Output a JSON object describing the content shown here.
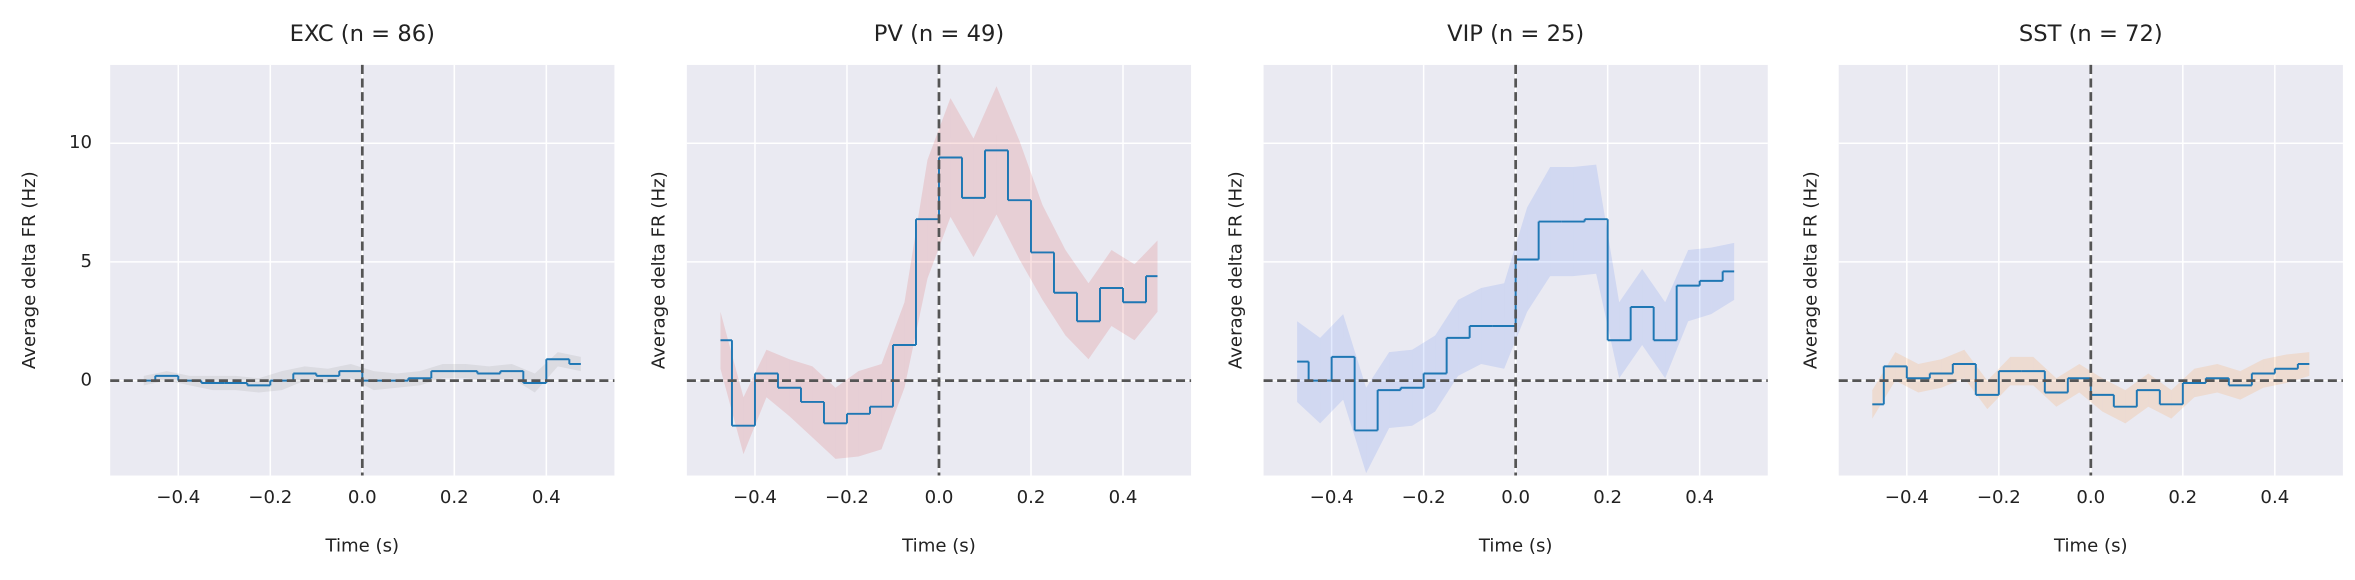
{
  "chart_data": [
    {
      "type": "line",
      "step": true,
      "title": "EXC (n = 86)",
      "xlabel": "Time (s)",
      "ylabel": "Average delta FR (Hz)",
      "x": [
        -0.475,
        -0.425,
        -0.375,
        -0.325,
        -0.275,
        -0.225,
        -0.175,
        -0.125,
        -0.075,
        -0.025,
        0.025,
        0.075,
        0.125,
        0.175,
        0.225,
        0.275,
        0.325,
        0.375,
        0.425,
        0.475
      ],
      "series": [
        {
          "color": "#1f77b4",
          "band_color": "#808080",
          "values": [
            0,
            0.2,
            0,
            -0.1,
            -0.1,
            -0.2,
            0,
            0.3,
            0.2,
            0.4,
            0,
            0,
            0.1,
            0.4,
            0.4,
            0.3,
            0.4,
            -0.1,
            0.9,
            0.7
          ],
          "errors": [
            0.2,
            0.2,
            0.2,
            0.3,
            0.3,
            0.3,
            0.4,
            0.3,
            0.3,
            0.3,
            0.4,
            0.3,
            0.3,
            0.3,
            0.3,
            0.3,
            0.3,
            0.4,
            0.3,
            0.3
          ]
        }
      ],
      "xlim": [
        -0.548,
        0.548
      ],
      "ylim": [
        -4.0,
        13.3
      ],
      "xticks": [
        {
          "value": -0.4,
          "label": "−0.4"
        },
        {
          "value": -0.2,
          "label": "−0.2"
        },
        {
          "value": 0,
          "label": "0.0"
        },
        {
          "value": 0.2,
          "label": "0.2"
        },
        {
          "value": 0.4,
          "label": "0.4"
        }
      ],
      "yticks": [
        0,
        5,
        10
      ],
      "show_ytick_labels": true,
      "grid": true,
      "axvline": 0,
      "axhline": 0
    },
    {
      "type": "line",
      "step": true,
      "title": "PV (n = 49)",
      "xlabel": "Time (s)",
      "ylabel": "Average delta FR (Hz)",
      "x": [
        -0.475,
        -0.425,
        -0.375,
        -0.325,
        -0.275,
        -0.225,
        -0.175,
        -0.125,
        -0.075,
        -0.025,
        0.025,
        0.075,
        0.125,
        0.175,
        0.225,
        0.275,
        0.325,
        0.375,
        0.425,
        0.475
      ],
      "series": [
        {
          "color": "#1f77b4",
          "band_color": "#d62728",
          "values": [
            1.7,
            -1.9,
            0.3,
            -0.3,
            -0.9,
            -1.8,
            -1.4,
            -1.1,
            1.5,
            6.8,
            9.4,
            7.7,
            9.7,
            7.6,
            5.4,
            3.7,
            2.5,
            3.9,
            3.3,
            4.4
          ],
          "errors": [
            1.2,
            1.2,
            1.0,
            1.2,
            1.5,
            1.5,
            1.8,
            1.8,
            1.8,
            2.5,
            2.5,
            2.5,
            2.7,
            2.5,
            2.0,
            1.8,
            1.6,
            1.6,
            1.6,
            1.5
          ]
        }
      ],
      "xlim": [
        -0.548,
        0.548
      ],
      "ylim": [
        -4.0,
        13.3
      ],
      "xticks": [
        {
          "value": -0.4,
          "label": "−0.4"
        },
        {
          "value": -0.2,
          "label": "−0.2"
        },
        {
          "value": 0,
          "label": "0.0"
        },
        {
          "value": 0.2,
          "label": "0.2"
        },
        {
          "value": 0.4,
          "label": "0.4"
        }
      ],
      "yticks": [
        0,
        5,
        10
      ],
      "show_ytick_labels": false,
      "grid": true,
      "axvline": 0,
      "axhline": 0
    },
    {
      "type": "line",
      "step": true,
      "title": "VIP (n = 25)",
      "xlabel": "Time (s)",
      "ylabel": "Average delta FR (Hz)",
      "x": [
        -0.475,
        -0.425,
        -0.375,
        -0.325,
        -0.275,
        -0.225,
        -0.175,
        -0.125,
        -0.075,
        -0.025,
        0.025,
        0.075,
        0.125,
        0.175,
        0.225,
        0.275,
        0.325,
        0.375,
        0.425,
        0.475
      ],
      "series": [
        {
          "color": "#1f77b4",
          "band_color": "#3a6cf0",
          "values": [
            0.8,
            0,
            1.0,
            -2.1,
            -0.4,
            -0.3,
            0.3,
            1.8,
            2.3,
            2.3,
            5.1,
            6.7,
            6.7,
            6.8,
            1.7,
            3.1,
            1.7,
            4.0,
            4.2,
            4.6
          ],
          "errors": [
            1.7,
            1.8,
            1.8,
            1.8,
            1.6,
            1.6,
            1.6,
            1.6,
            1.6,
            1.8,
            2.2,
            2.3,
            2.3,
            2.3,
            1.6,
            1.6,
            1.6,
            1.5,
            1.4,
            1.2
          ]
        }
      ],
      "xlim": [
        -0.548,
        0.548
      ],
      "ylim": [
        -4.0,
        13.3
      ],
      "xticks": [
        {
          "value": -0.4,
          "label": "−0.4"
        },
        {
          "value": -0.2,
          "label": "−0.2"
        },
        {
          "value": 0,
          "label": "0.0"
        },
        {
          "value": 0.2,
          "label": "0.2"
        },
        {
          "value": 0.4,
          "label": "0.4"
        }
      ],
      "yticks": [
        0,
        5,
        10
      ],
      "show_ytick_labels": false,
      "grid": true,
      "axvline": 0,
      "axhline": 0
    },
    {
      "type": "line",
      "step": true,
      "title": "SST (n = 72)",
      "xlabel": "Time (s)",
      "ylabel": "Average delta FR (Hz)",
      "x": [
        -0.475,
        -0.425,
        -0.375,
        -0.325,
        -0.275,
        -0.225,
        -0.175,
        -0.125,
        -0.075,
        -0.025,
        0.025,
        0.075,
        0.125,
        0.175,
        0.225,
        0.275,
        0.325,
        0.375,
        0.425,
        0.475
      ],
      "series": [
        {
          "color": "#1f77b4",
          "band_color": "#ff7f0e",
          "values": [
            -1.0,
            0.6,
            0.1,
            0.3,
            0.7,
            -0.6,
            0.4,
            0.4,
            -0.5,
            0.1,
            -0.6,
            -1.1,
            -0.4,
            -1.0,
            -0.1,
            0.1,
            -0.2,
            0.3,
            0.5,
            0.7
          ],
          "errors": [
            0.6,
            0.6,
            0.6,
            0.6,
            0.6,
            0.6,
            0.6,
            0.6,
            0.6,
            0.6,
            0.7,
            0.7,
            0.7,
            0.6,
            0.6,
            0.6,
            0.6,
            0.6,
            0.6,
            0.5
          ]
        }
      ],
      "xlim": [
        -0.548,
        0.548
      ],
      "ylim": [
        -4.0,
        13.3
      ],
      "xticks": [
        {
          "value": -0.4,
          "label": "−0.4"
        },
        {
          "value": -0.2,
          "label": "−0.2"
        },
        {
          "value": 0,
          "label": "0.0"
        },
        {
          "value": 0.2,
          "label": "0.2"
        },
        {
          "value": 0.4,
          "label": "0.4"
        }
      ],
      "yticks": [
        0,
        5,
        10
      ],
      "show_ytick_labels": false,
      "grid": true,
      "axvline": 0,
      "axhline": 0
    }
  ]
}
